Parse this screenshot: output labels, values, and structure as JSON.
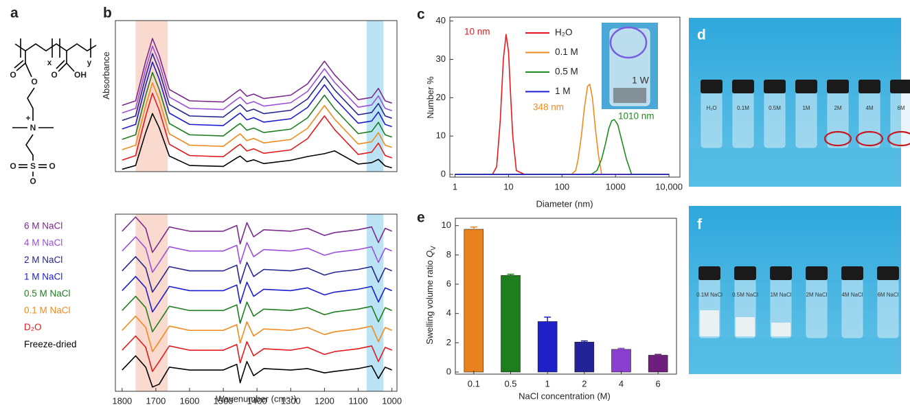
{
  "panel_labels": [
    "a",
    "b",
    "c",
    "d",
    "e",
    "f"
  ],
  "structure": {
    "labels": [
      "x",
      "y",
      "O",
      "O",
      "O",
      "OH",
      "N",
      "+",
      "S",
      "O",
      "O",
      "O"
    ]
  },
  "chart_data": [
    {
      "type": "line",
      "ylabel": "Absorbance",
      "x": [
        1800,
        1760,
        1730,
        1710,
        1690,
        1660,
        1600,
        1500,
        1460,
        1450,
        1430,
        1410,
        1380,
        1300,
        1250,
        1200,
        1170,
        1100,
        1060,
        1040,
        1020,
        1000
      ],
      "xlim": [
        1820,
        985
      ],
      "ylim": [
        0,
        16
      ],
      "highlights": [
        {
          "range": [
            1760,
            1665
          ],
          "color": "#f9cfc2"
        },
        {
          "range": [
            1075,
            1025
          ],
          "color": "#a9dcf0"
        }
      ],
      "series": [
        {
          "color": "#000000",
          "values": [
            0.25,
            0.65,
            4.15,
            6.15,
            4.65,
            1.65,
            0.65,
            0.55,
            1.45,
            1.65,
            1.05,
            1.25,
            0.85,
            1.2,
            1.6,
            1.9,
            2.2,
            0.8,
            0.95,
            1.3,
            0.6,
            0.4
          ]
        },
        {
          "color": "#e3191c",
          "values": [
            1.22,
            1.7,
            5.9,
            8.3,
            6.5,
            2.9,
            1.7,
            1.58,
            2.66,
            2.9,
            2.18,
            2.42,
            1.94,
            2.3,
            3.5,
            5.9,
            4.46,
            1.82,
            2.06,
            3.02,
            1.7,
            1.46
          ]
        },
        {
          "color": "#f08a1d",
          "values": [
            2.32,
            2.8,
            7.0,
            9.4,
            7.6,
            4.0,
            2.8,
            2.68,
            3.76,
            4.0,
            3.28,
            3.52,
            3.04,
            3.4,
            4.6,
            7.0,
            5.56,
            2.92,
            3.16,
            4.12,
            2.8,
            2.56
          ]
        },
        {
          "color": "#1f7d1f",
          "values": [
            3.42,
            3.9,
            8.1,
            10.5,
            8.7,
            5.1,
            3.9,
            3.78,
            4.86,
            5.1,
            4.38,
            4.62,
            4.14,
            4.5,
            5.7,
            8.1,
            6.66,
            4.02,
            4.26,
            5.22,
            3.9,
            3.66
          ]
        },
        {
          "color": "#1c1ccf",
          "values": [
            4.52,
            5.0,
            9.2,
            11.6,
            9.8,
            6.2,
            5.0,
            4.88,
            5.96,
            6.2,
            5.48,
            5.72,
            5.24,
            5.6,
            6.8,
            9.2,
            7.76,
            5.12,
            5.36,
            6.32,
            5.0,
            4.76
          ]
        },
        {
          "color": "#25258c",
          "values": [
            5.42,
            5.9,
            10.1,
            12.5,
            10.7,
            7.1,
            5.9,
            5.78,
            6.86,
            7.1,
            6.38,
            6.62,
            6.14,
            6.5,
            7.7,
            10.1,
            8.66,
            6.02,
            6.26,
            7.22,
            5.9,
            5.66
          ]
        },
        {
          "color": "#9a4fd8",
          "values": [
            6.22,
            6.7,
            10.9,
            13.3,
            11.5,
            7.9,
            6.7,
            6.58,
            7.66,
            7.9,
            7.18,
            7.42,
            6.94,
            7.3,
            8.5,
            10.9,
            9.46,
            6.82,
            7.06,
            8.02,
            6.7,
            6.46
          ]
        },
        {
          "color": "#7a2a8c",
          "values": [
            7.02,
            7.5,
            11.7,
            14.1,
            12.3,
            8.7,
            7.5,
            7.38,
            8.46,
            8.7,
            7.98,
            8.22,
            7.74,
            8.1,
            9.3,
            11.7,
            10.26,
            7.62,
            7.86,
            8.82,
            7.5,
            7.26
          ]
        }
      ]
    },
    {
      "type": "line",
      "xlabel": "Wavenumber (cm⁻¹)",
      "x": [
        1800,
        1760,
        1730,
        1710,
        1690,
        1660,
        1600,
        1500,
        1460,
        1450,
        1430,
        1410,
        1380,
        1300,
        1250,
        1200,
        1170,
        1100,
        1060,
        1040,
        1020,
        1000
      ],
      "xlim": [
        1820,
        985
      ],
      "xticks": [
        1800,
        1700,
        1600,
        1500,
        1400,
        1300,
        1200,
        1100,
        1000
      ],
      "ylim": [
        -1.5,
        11
      ],
      "highlights": [
        {
          "range": [
            1760,
            1665
          ],
          "color": "#f9cfc2"
        },
        {
          "range": [
            1075,
            1025
          ],
          "color": "#a9dcf0"
        }
      ],
      "series": [
        {
          "name": "Freeze-dried",
          "color": "#000000",
          "values": [
            0,
            1.0,
            0.2,
            -1.2,
            -1.0,
            0.2,
            0,
            0,
            0.4,
            -0.9,
            0.6,
            -0.4,
            0.1,
            0,
            0.1,
            -0.2,
            -0.1,
            0.1,
            0.3,
            -0.6,
            0.2,
            0
          ]
        },
        {
          "name": "D₂O",
          "color": "#e3191c",
          "values": [
            1.4,
            2.4,
            1.6,
            -0.1,
            0.6,
            1.7,
            1.4,
            1.4,
            1.8,
            0.5,
            2.0,
            1.0,
            1.5,
            1.4,
            1.6,
            1.1,
            1.3,
            1.5,
            1.7,
            0.6,
            1.6,
            1.4
          ]
        },
        {
          "name": "0.1 M NaCl",
          "color": "#f08a1d",
          "values": [
            2.8,
            3.8,
            3.0,
            1.3,
            2.0,
            3.1,
            2.8,
            2.8,
            3.2,
            1.9,
            3.4,
            2.4,
            2.9,
            2.8,
            3.0,
            2.5,
            2.7,
            2.9,
            3.1,
            2.0,
            3.0,
            2.8
          ]
        },
        {
          "name": "0.5 M NaCl",
          "color": "#1f7d1f",
          "values": [
            4.2,
            5.2,
            4.4,
            2.7,
            3.4,
            4.5,
            4.2,
            4.2,
            4.6,
            3.3,
            4.8,
            3.8,
            4.3,
            4.2,
            4.4,
            3.9,
            4.1,
            4.3,
            4.5,
            3.4,
            4.4,
            4.2
          ]
        },
        {
          "name": "1 M NaCl",
          "color": "#1c1ccf",
          "values": [
            5.6,
            6.6,
            5.8,
            4.1,
            4.8,
            5.9,
            5.6,
            5.6,
            6.0,
            4.7,
            6.2,
            5.2,
            5.7,
            5.6,
            5.8,
            5.3,
            5.5,
            5.7,
            5.9,
            4.8,
            5.8,
            5.6
          ]
        },
        {
          "name": "2 M NaCl",
          "color": "#25258c",
          "values": [
            7.0,
            8.0,
            7.2,
            5.5,
            6.2,
            7.3,
            7.0,
            7.0,
            7.4,
            6.1,
            7.6,
            6.6,
            7.1,
            7.0,
            7.2,
            6.7,
            6.9,
            7.1,
            7.3,
            6.2,
            7.2,
            7.0
          ]
        },
        {
          "name": "4 M NaCl",
          "color": "#9a4fd8",
          "values": [
            8.4,
            9.4,
            8.6,
            6.9,
            7.6,
            8.7,
            8.4,
            8.4,
            8.8,
            7.5,
            9.0,
            8.0,
            8.5,
            8.4,
            8.6,
            8.1,
            8.3,
            8.5,
            8.7,
            7.6,
            8.6,
            8.4
          ]
        },
        {
          "name": "6 M NaCl",
          "color": "#7a2a8c",
          "values": [
            9.8,
            10.8,
            10.0,
            8.3,
            9.0,
            10.1,
            9.8,
            9.8,
            10.2,
            8.9,
            10.4,
            9.4,
            9.9,
            9.8,
            10.0,
            9.5,
            9.7,
            9.9,
            10.1,
            9.0,
            10.0,
            9.8
          ]
        }
      ]
    },
    {
      "type": "line",
      "log_x": true,
      "xlabel": "Diameter (nm)",
      "ylabel": "Number %",
      "xlim": [
        0.8,
        16000
      ],
      "xticks": [
        1,
        10,
        100,
        1000,
        {
          "value": 10000,
          "label": "10,000"
        }
      ],
      "ylim": [
        -0.7,
        41
      ],
      "yticks": [
        0,
        10,
        20,
        30,
        40
      ],
      "series": [
        {
          "name": "H₂O",
          "color": "#e3191c",
          "x": [
            1,
            5,
            6,
            7,
            8,
            9,
            10,
            11,
            12,
            14,
            20,
            10000
          ],
          "values": [
            0,
            0,
            2,
            14,
            30,
            36.5,
            32,
            20,
            10,
            1,
            0,
            0
          ]
        },
        {
          "name": "0.1 M",
          "color": "#f08a1d",
          "x": [
            1,
            150,
            180,
            200,
            230,
            260,
            300,
            330,
            370,
            420,
            480,
            550,
            10000
          ],
          "values": [
            0,
            0,
            1,
            4,
            10,
            17,
            23,
            23.5,
            20,
            12,
            5,
            0,
            0
          ]
        },
        {
          "name": "0.5 M",
          "color": "#1f8a1f",
          "x": [
            1,
            350,
            450,
            550,
            650,
            750,
            850,
            950,
            1100,
            1300,
            1600,
            2000,
            10000
          ],
          "values": [
            0,
            0,
            1,
            4,
            8,
            12,
            14,
            14.3,
            13,
            9,
            4,
            0,
            0
          ]
        },
        {
          "name": "1 M",
          "color": "#1c1ccf",
          "x": [
            1,
            10000
          ],
          "values": [
            0,
            0
          ]
        }
      ],
      "annotations": [
        {
          "text": "10 nm",
          "color": "#e3191c"
        },
        {
          "text": "348 nm",
          "color": "#f08a1d"
        },
        {
          "text": "1010 nm",
          "color": "#1f8a1f"
        }
      ]
    },
    {
      "type": "bar",
      "xlabel": "NaCl concentration (M)",
      "ylabel": "Swelling volume ratio",
      "ylabel_symbol": "Q",
      "ylabel_subscript": "V",
      "categories": [
        "0.1",
        "0.5",
        "1",
        "2",
        "4",
        "6"
      ],
      "values": [
        9.75,
        6.6,
        3.45,
        2.05,
        1.55,
        1.15
      ],
      "errors": [
        0.15,
        0.08,
        0.3,
        0.08,
        0.07,
        0.06
      ],
      "colors": [
        "#e8821e",
        "#1e7d1e",
        "#2020c8",
        "#222299",
        "#8a3fd0",
        "#6e1f7e"
      ],
      "ylim": [
        -0.14,
        10.5
      ],
      "yticks": [
        0,
        2,
        4,
        6,
        8,
        10
      ]
    }
  ],
  "photos": {
    "c_inset": {
      "label": "1 W"
    },
    "d": {
      "vial_labels": [
        "H₂O",
        "0.1M",
        "0.5M",
        "1M",
        "2M",
        "4M",
        "6M"
      ]
    },
    "f": {
      "vial_labels": [
        "0.1M NaCl",
        "0.5M NaCl",
        "1M NaCl",
        "2M NaCl",
        "4M NaCl",
        "6M NaCl"
      ]
    }
  }
}
